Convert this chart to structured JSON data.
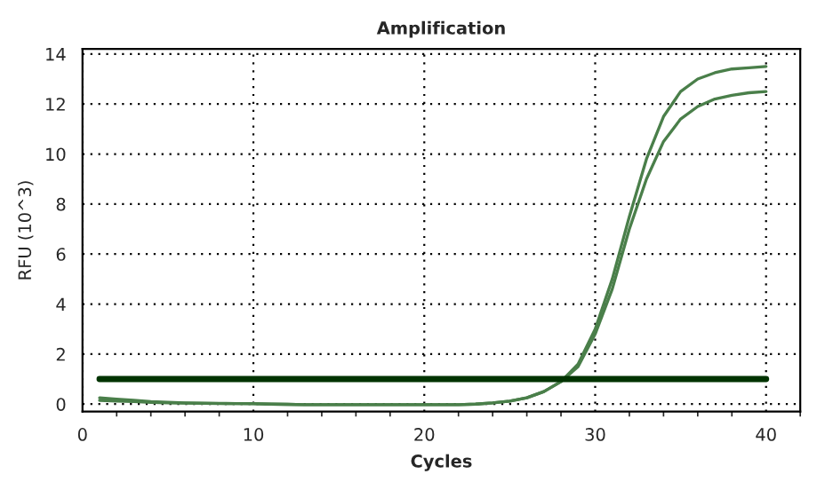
{
  "chart_data": {
    "type": "line",
    "title": "Amplification",
    "xlabel": "Cycles",
    "ylabel": "RFU (10^3)",
    "x": [
      1,
      2,
      3,
      4,
      5,
      6,
      7,
      8,
      9,
      10,
      11,
      12,
      13,
      14,
      15,
      16,
      17,
      18,
      19,
      20,
      21,
      22,
      23,
      24,
      25,
      26,
      27,
      28,
      29,
      30,
      31,
      32,
      33,
      34,
      35,
      36,
      37,
      38,
      39,
      40
    ],
    "series": [
      {
        "color": "#4a7f4a",
        "values": [
          0.25,
          0.2,
          0.15,
          0.1,
          0.07,
          0.05,
          0.04,
          0.03,
          0.02,
          0.02,
          0.0,
          -0.01,
          -0.02,
          -0.02,
          -0.02,
          -0.02,
          -0.02,
          -0.02,
          -0.02,
          -0.02,
          -0.02,
          -0.02,
          0.0,
          0.05,
          0.12,
          0.25,
          0.5,
          0.9,
          1.6,
          3.0,
          5.0,
          7.5,
          9.8,
          11.5,
          12.5,
          13.0,
          13.25,
          13.4,
          13.45,
          13.5
        ]
      },
      {
        "color": "#4a7f4a",
        "values": [
          0.15,
          0.12,
          0.1,
          0.07,
          0.05,
          0.04,
          0.03,
          0.02,
          0.02,
          0.01,
          0.0,
          -0.01,
          -0.02,
          -0.02,
          -0.02,
          -0.02,
          -0.02,
          -0.02,
          -0.02,
          -0.02,
          -0.02,
          -0.02,
          0.0,
          0.05,
          0.12,
          0.25,
          0.5,
          0.9,
          1.5,
          2.8,
          4.6,
          7.0,
          9.0,
          10.5,
          11.4,
          11.9,
          12.2,
          12.35,
          12.45,
          12.5
        ]
      }
    ],
    "ref_lines": [
      {
        "axis": "y",
        "value": 1,
        "color": "#003300"
      }
    ],
    "xlim": [
      0,
      42
    ],
    "ylim": [
      -0.3,
      14.2
    ],
    "xticks": [
      0,
      10,
      20,
      30,
      40
    ],
    "yticks": [
      0,
      2,
      4,
      6,
      8,
      10,
      12,
      14
    ],
    "grid": true,
    "marker": "none",
    "line_style": "solid",
    "legend": false
  }
}
